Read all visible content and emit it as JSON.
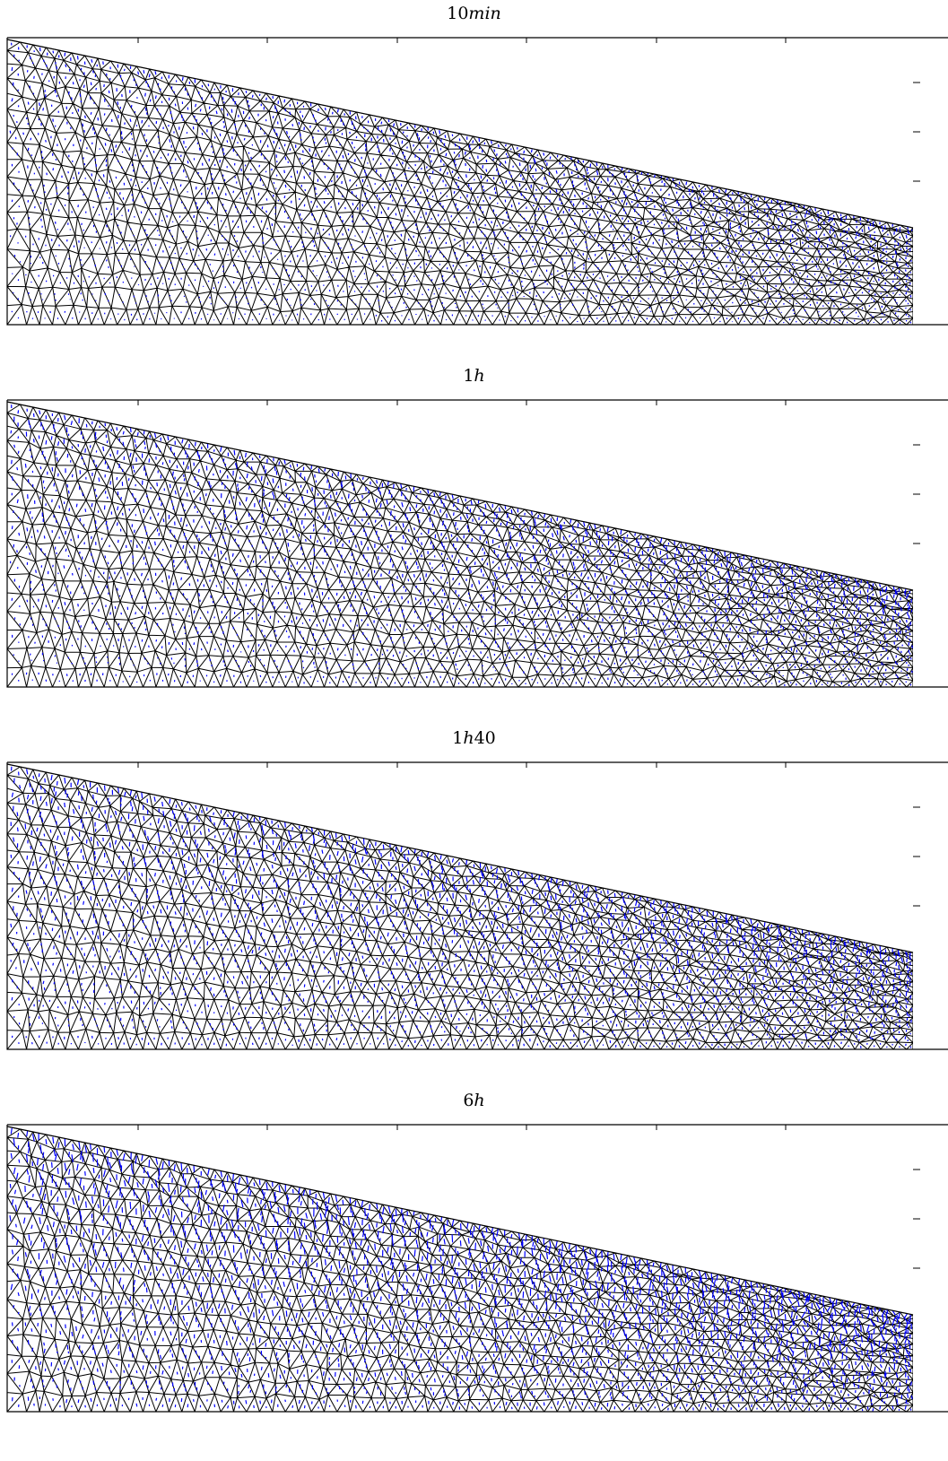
{
  "figure": {
    "panels": [
      {
        "title_num": "10",
        "title_unit": "min",
        "title_tail": "",
        "flow_strength": 0.55
      },
      {
        "title_num": "1",
        "title_unit": "h",
        "title_tail": "",
        "flow_strength": 0.75
      },
      {
        "title_num": "1",
        "title_unit": "h",
        "title_tail": "40",
        "flow_strength": 0.9
      },
      {
        "title_num": "6",
        "title_unit": "h",
        "title_tail": "",
        "flow_strength": 1.3
      }
    ],
    "colors": {
      "mesh": "#000000",
      "vectors": "#0000ff",
      "frame": "#000000"
    }
  }
}
